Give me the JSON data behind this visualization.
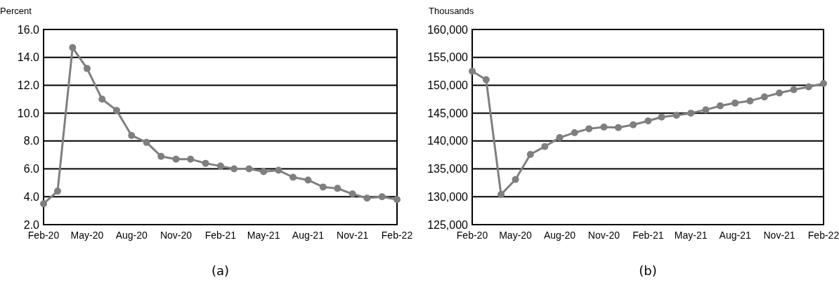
{
  "chart_data": [
    {
      "type": "line",
      "ylabel": "Percent",
      "annotations": [
        "(a)"
      ],
      "x": [
        "2020-02",
        "2020-03",
        "2020-04",
        "2020-05",
        "2020-06",
        "2020-07",
        "2020-08",
        "2020-09",
        "2020-10",
        "2020-11",
        "2020-12",
        "2021-01",
        "2021-02",
        "2021-03",
        "2021-04",
        "2021-05",
        "2021-06",
        "2021-07",
        "2021-08",
        "2021-09",
        "2021-10",
        "2021-11",
        "2021-12",
        "2022-01",
        "2022-02"
      ],
      "series": [
        {
          "color": "#7f7f7f",
          "values": [
            3.5,
            4.4,
            14.7,
            13.2,
            11.0,
            10.2,
            8.4,
            7.9,
            6.9,
            6.7,
            6.7,
            6.4,
            6.2,
            6.0,
            6.0,
            5.8,
            5.9,
            5.4,
            5.2,
            4.7,
            4.6,
            4.2,
            3.9,
            4.0,
            3.8
          ]
        }
      ],
      "xlim": [
        "2020-02",
        "2022-02"
      ],
      "xticks": [
        {
          "value": "2020-02",
          "label": "Feb-20"
        },
        {
          "value": "2020-05",
          "label": "May-20"
        },
        {
          "value": "2020-08",
          "label": "Aug-20"
        },
        {
          "value": "2020-11",
          "label": "Nov-20"
        },
        {
          "value": "2021-02",
          "label": "Feb-21"
        },
        {
          "value": "2021-05",
          "label": "May-21"
        },
        {
          "value": "2021-08",
          "label": "Aug-21"
        },
        {
          "value": "2021-11",
          "label": "Nov-21"
        },
        {
          "value": "2022-02",
          "label": "Feb-22"
        }
      ],
      "ylim": [
        2,
        16
      ],
      "yticks": [
        {
          "value": 2,
          "label": "2.0"
        },
        {
          "value": 4,
          "label": "4.0"
        },
        {
          "value": 6,
          "label": "6.0"
        },
        {
          "value": 8,
          "label": "8.0"
        },
        {
          "value": 10,
          "label": "10.0"
        },
        {
          "value": 12,
          "label": "12.0"
        },
        {
          "value": 14,
          "label": "14.0"
        },
        {
          "value": 16,
          "label": "16.0"
        }
      ],
      "grid": "y",
      "marker": "circle",
      "line_style": "solid"
    },
    {
      "type": "line",
      "ylabel": "Thousands",
      "annotations": [
        "(b)"
      ],
      "x": [
        "2020-02",
        "2020-03",
        "2020-04",
        "2020-05",
        "2020-06",
        "2020-07",
        "2020-08",
        "2020-09",
        "2020-10",
        "2020-11",
        "2020-12",
        "2021-01",
        "2021-02",
        "2021-03",
        "2021-04",
        "2021-05",
        "2021-06",
        "2021-07",
        "2021-08",
        "2021-09",
        "2021-10",
        "2021-11",
        "2021-12",
        "2022-01",
        "2022-02"
      ],
      "series": [
        {
          "color": "#7f7f7f",
          "values": [
            152500,
            151000,
            130400,
            133100,
            137600,
            139000,
            140600,
            141500,
            142200,
            142500,
            142400,
            142900,
            143600,
            144300,
            144600,
            145000,
            145600,
            146300,
            146800,
            147200,
            147900,
            148600,
            149200,
            149700,
            150300
          ]
        }
      ],
      "xlim": [
        "2020-02",
        "2022-02"
      ],
      "xticks": [
        {
          "value": "2020-02",
          "label": "Feb-20"
        },
        {
          "value": "2020-05",
          "label": "May-20"
        },
        {
          "value": "2020-08",
          "label": "Aug-20"
        },
        {
          "value": "2020-11",
          "label": "Nov-20"
        },
        {
          "value": "2021-02",
          "label": "Feb-21"
        },
        {
          "value": "2021-05",
          "label": "May-21"
        },
        {
          "value": "2021-08",
          "label": "Aug-21"
        },
        {
          "value": "2021-11",
          "label": "Nov-21"
        },
        {
          "value": "2022-02",
          "label": "Feb-22"
        }
      ],
      "ylim": [
        125000,
        160000
      ],
      "yticks": [
        {
          "value": 125000,
          "label": "125,000"
        },
        {
          "value": 130000,
          "label": "130,000"
        },
        {
          "value": 135000,
          "label": "135,000"
        },
        {
          "value": 140000,
          "label": "140,000"
        },
        {
          "value": 145000,
          "label": "145,000"
        },
        {
          "value": 150000,
          "label": "150,000"
        },
        {
          "value": 155000,
          "label": "155,000"
        },
        {
          "value": 160000,
          "label": "160,000"
        }
      ],
      "grid": "y",
      "marker": "circle",
      "line_style": "solid"
    }
  ]
}
